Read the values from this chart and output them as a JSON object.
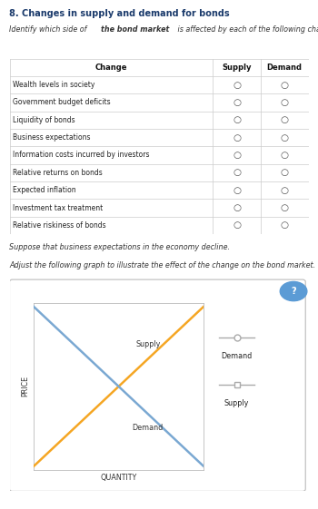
{
  "title": "8. Changes in supply and demand for bonds",
  "subtitle": "Identify which side of the bond market is affected by each of the following changes.",
  "table_headers": [
    "Change",
    "Supply",
    "Demand"
  ],
  "table_rows": [
    "Wealth levels in society",
    "Government budget deficits",
    "Liquidity of bonds",
    "Business expectations",
    "Information costs incurred by investors",
    "Relative returns on bonds",
    "Expected inflation",
    "Investment tax treatment",
    "Relative riskiness of bonds"
  ],
  "text1": "Suppose that business expectations in the economy decline.",
  "text2": "Adjust the following graph to illustrate the effect of the change on the bond market.",
  "graph_xlabel": "QUANTITY",
  "graph_ylabel": "PRICE",
  "supply_label": "Supply",
  "demand_label": "Demand",
  "supply_color": "#f5a623",
  "demand_color": "#7aa8d2",
  "legend_line_color": "#aaaaaa",
  "bg_color": "#ffffff",
  "border_color": "#cccccc",
  "question_mark_color": "#5b9bd5",
  "table_border": "#cccccc",
  "header_bg": "#ffffff"
}
